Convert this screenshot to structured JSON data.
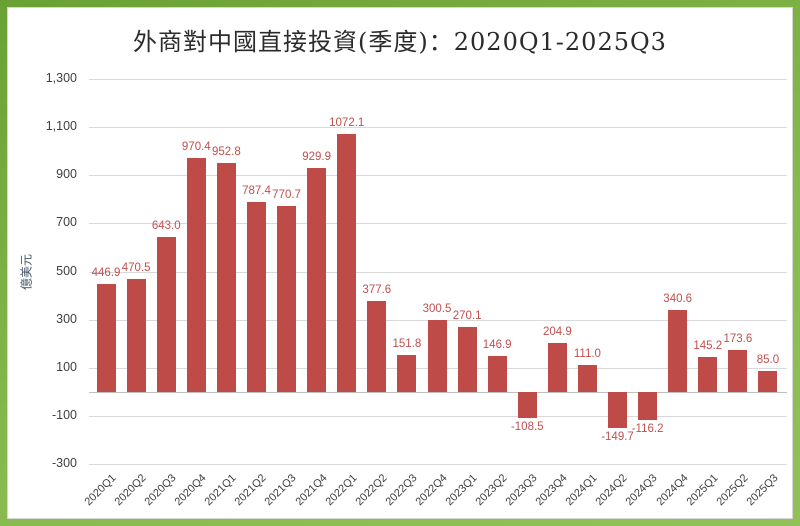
{
  "window": {
    "frame_border_color": "#7BAD41",
    "panel_border_color": "#D6D6D6",
    "background": "#FFFFFF"
  },
  "chart_data": {
    "type": "bar",
    "title": "外商對中國直接投資(季度)：2020Q1-2025Q3",
    "ylabel": "億美元",
    "xlabel": "",
    "categories": [
      "2020Q1",
      "2020Q2",
      "2020Q3",
      "2020Q4",
      "2021Q1",
      "2021Q2",
      "2021Q3",
      "2021Q4",
      "2022Q1",
      "2022Q2",
      "2022Q3",
      "2022Q4",
      "2023Q1",
      "2023Q2",
      "2023Q3",
      "2023Q4",
      "2024Q1",
      "2024Q2",
      "2024Q3",
      "2024Q4",
      "2025Q1",
      "2025Q2",
      "2025Q3"
    ],
    "values": [
      446.9,
      470.5,
      643.0,
      970.4,
      952.8,
      787.4,
      770.7,
      929.9,
      1072.1,
      377.6,
      151.8,
      300.5,
      270.1,
      146.9,
      -108.5,
      204.9,
      111.0,
      -149.7,
      -116.2,
      340.6,
      145.2,
      173.6,
      85.0
    ],
    "ylim": [
      -300,
      1300
    ],
    "yticks": {
      "labels": [
        "1,300",
        "1,100",
        "900",
        "700",
        "500",
        "300",
        "100",
        "-100",
        "-300"
      ],
      "values": [
        1300,
        1100,
        900,
        700,
        500,
        300,
        100,
        -100,
        -300
      ]
    },
    "grid": true,
    "legend": false,
    "data_labels": true,
    "data_label_decimals": 1,
    "bar_color": "#BE4B48",
    "data_label_color": "#C0504D",
    "axis_text_color": "#404040",
    "ylabel_color": "#44546A",
    "gridline_color": "#D9D9D9"
  }
}
